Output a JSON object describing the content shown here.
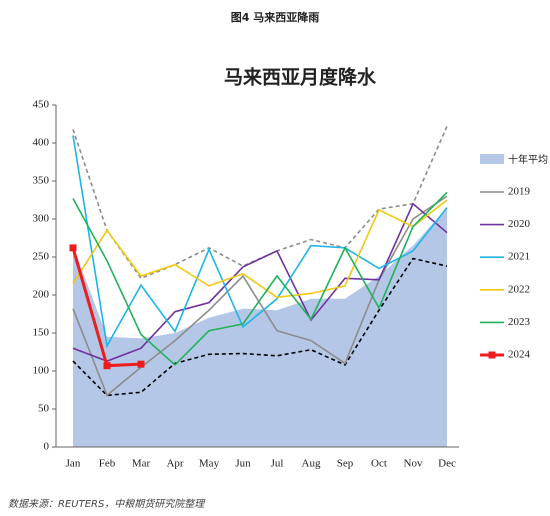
{
  "figure_label": "图4 马来西亚降雨",
  "source": "数据来源：REUTERS，中粮期货研究院整理",
  "chart_data": {
    "type": "line",
    "title": "马来西亚月度降水",
    "categories": [
      "Jan",
      "Feb",
      "Mar",
      "Apr",
      "May",
      "Jun",
      "Jul",
      "Aug",
      "Sep",
      "Oct",
      "Nov",
      "Dec"
    ],
    "ylim": [
      0,
      450
    ],
    "yticks": [
      0,
      50,
      100,
      150,
      200,
      250,
      300,
      350,
      400,
      450
    ],
    "area": {
      "name": "十年平均",
      "color": "#b4c7e7",
      "values": [
        265,
        145,
        143,
        150,
        170,
        182,
        180,
        195,
        195,
        225,
        265,
        315
      ]
    },
    "series": [
      {
        "name": "2019",
        "color": "#8c8c8c",
        "values": [
          182,
          68,
          105,
          140,
          180,
          225,
          153,
          140,
          110,
          220,
          300,
          330
        ]
      },
      {
        "name": "2020",
        "color": "#7030a0",
        "values": [
          130,
          113,
          130,
          178,
          190,
          237,
          258,
          167,
          222,
          220,
          320,
          282
        ]
      },
      {
        "name": "2021",
        "color": "#1fb5e6",
        "values": [
          410,
          133,
          213,
          152,
          260,
          158,
          195,
          265,
          262,
          235,
          258,
          315
        ]
      },
      {
        "name": "2022",
        "color": "#f2c811",
        "values": [
          215,
          285,
          225,
          240,
          212,
          228,
          197,
          202,
          212,
          312,
          290,
          325
        ]
      },
      {
        "name": "2023",
        "color": "#21b25c",
        "values": [
          327,
          245,
          148,
          108,
          153,
          162,
          225,
          168,
          262,
          183,
          290,
          335
        ]
      },
      {
        "name": "2024",
        "color": "#ee1c1c",
        "marker": "square",
        "values": [
          262,
          107,
          109,
          null,
          null,
          null,
          null,
          null,
          null,
          null,
          null,
          null
        ]
      }
    ],
    "extra_lines": [
      {
        "color": "#8c8c8c",
        "dashed": true,
        "values": [
          418,
          285,
          222,
          240,
          262,
          238,
          258,
          273,
          262,
          313,
          320,
          422
        ]
      },
      {
        "color": "#000000",
        "dashed": true,
        "values": [
          113,
          68,
          72,
          110,
          122,
          123,
          120,
          128,
          108,
          180,
          248,
          238
        ]
      }
    ]
  }
}
